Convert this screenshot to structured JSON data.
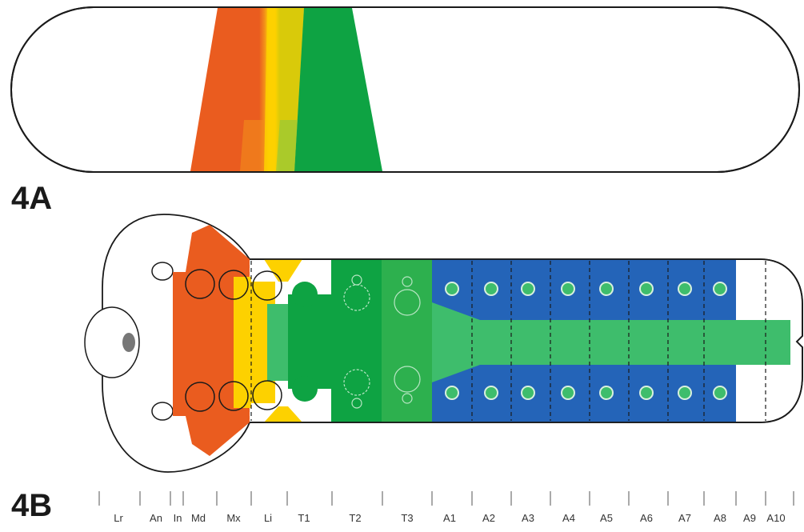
{
  "panels": {
    "a": {
      "label": "4A"
    },
    "b": {
      "label": "4B"
    }
  },
  "colors": {
    "orange": "#ea5c1f",
    "yellow": "#fdd100",
    "dark_green": "#0ea343",
    "light_green": "#3ebd6c",
    "blue": "#2464b8",
    "outline": "#1a1a1a",
    "gray": "#777777"
  },
  "segments": [
    "Lr",
    "An",
    "In",
    "Md",
    "Mx",
    "Li",
    "T1",
    "T2",
    "T3",
    "A1",
    "A2",
    "A3",
    "A4",
    "A5",
    "A6",
    "A7",
    "A8",
    "A9",
    "A10"
  ]
}
